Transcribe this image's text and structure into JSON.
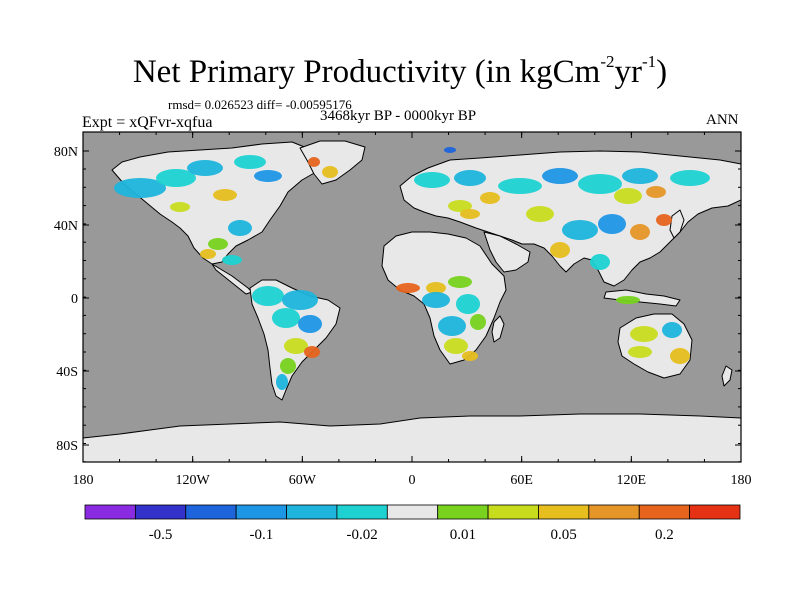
{
  "title": {
    "main": "Net Primary Productivity (in kgCm",
    "exp1": "-2",
    "mid": "yr",
    "exp2": "-1",
    "close": ")"
  },
  "stats_line": "rmsd= 0.026523 diff= -0.00595176",
  "experiment_label": "Expt = xQFvr-xqfua",
  "period_label": "3468kyr BP - 0000kyr BP",
  "season_label": "ANN",
  "colors": {
    "ocean": "#999999",
    "land_neutral": "#e8e8e8",
    "coast": "#000000"
  },
  "map_axes": {
    "lat_ticks": [
      "80N",
      "40N",
      "0",
      "40S",
      "80S"
    ],
    "lon_ticks": [
      "180",
      "120W",
      "60W",
      "0",
      "60E",
      "120E",
      "180"
    ]
  },
  "colorbar": {
    "colors": [
      "#8a2be2",
      "#3333cc",
      "#1e64dc",
      "#1e96e6",
      "#1eb4dc",
      "#1ed2d2",
      "#e8e8e8",
      "#78d21e",
      "#c8dc1e",
      "#e6be1e",
      "#e69628",
      "#e6641e",
      "#e63214"
    ],
    "labels": [
      "-0.5",
      "-0.1",
      "-0.02",
      "0.01",
      "0.05",
      "0.2"
    ]
  }
}
